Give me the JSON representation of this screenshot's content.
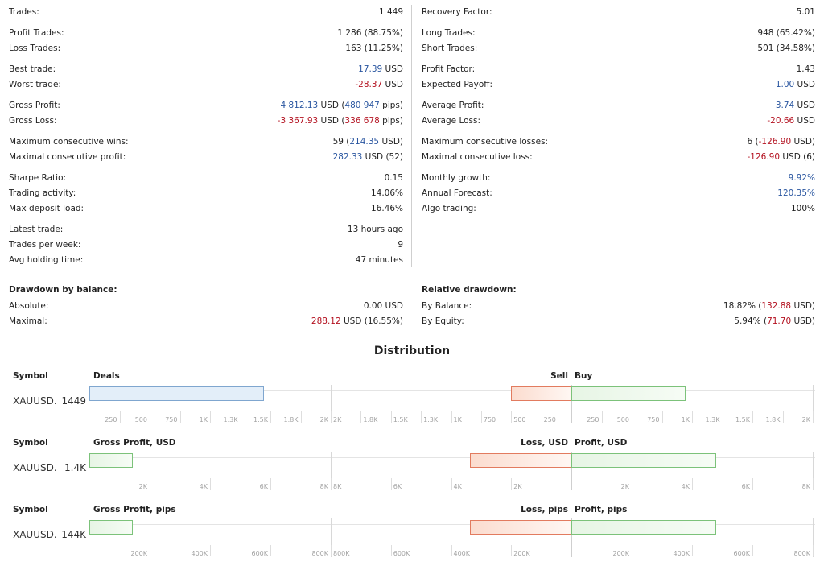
{
  "stats_left": [
    {
      "label": "Trades:",
      "value": "1 449"
    },
    {
      "label": "Profit Trades:",
      "value": "1 286 (88.75%)"
    },
    {
      "label": "Loss Trades:",
      "value": "163 (11.25%)"
    },
    {
      "label": "Best trade:",
      "value_prefix": "",
      "value_colored": "17.39",
      "value_suffix": " USD",
      "color": "blue"
    },
    {
      "label": "Worst trade:",
      "value_prefix": "",
      "value_colored": "-28.37",
      "value_suffix": " USD",
      "color": "red"
    },
    {
      "label": "Gross Profit:",
      "value_prefix": "",
      "value_colored": "4 812.13",
      "value_mid": " USD (",
      "value_colored2": "480 947",
      "value_suffix": " pips)",
      "color": "blue"
    },
    {
      "label": "Gross Loss:",
      "value_prefix": "",
      "value_colored": "-3 367.93",
      "value_mid": " USD (",
      "value_colored2": "336 678",
      "value_suffix": " pips)",
      "color": "red"
    },
    {
      "label": "Maximum consecutive wins:",
      "value_prefix": "59 (",
      "value_colored": "214.35",
      "value_suffix": " USD)",
      "color": "blue"
    },
    {
      "label": "Maximal consecutive profit:",
      "value_prefix": "",
      "value_colored": "282.33",
      "value_suffix": " USD (52)",
      "color": "blue"
    },
    {
      "label": "Sharpe Ratio:",
      "value": "0.15"
    },
    {
      "label": "Trading activity:",
      "value": "14.06%"
    },
    {
      "label": "Max deposit load:",
      "value": "16.46%"
    },
    {
      "label": "Latest trade:",
      "value": "13 hours ago"
    },
    {
      "label": "Trades per week:",
      "value": "9"
    },
    {
      "label": "Avg holding time:",
      "value": "47 minutes"
    }
  ],
  "stats_right": [
    {
      "label": "Recovery Factor:",
      "value": "5.01"
    },
    {
      "label": "Long Trades:",
      "value": "948 (65.42%)"
    },
    {
      "label": "Short Trades:",
      "value": "501 (34.58%)"
    },
    {
      "label": "Profit Factor:",
      "value": "1.43"
    },
    {
      "label": "Expected Payoff:",
      "value_prefix": "",
      "value_colored": "1.00",
      "value_suffix": " USD",
      "color": "blue"
    },
    {
      "label": "Average Profit:",
      "value_prefix": "",
      "value_colored": "3.74",
      "value_suffix": " USD",
      "color": "blue"
    },
    {
      "label": "Average Loss:",
      "value_prefix": "",
      "value_colored": "-20.66",
      "value_suffix": " USD",
      "color": "red"
    },
    {
      "label": "Maximum consecutive losses:",
      "value_prefix": "6 (",
      "value_colored": "-126.90",
      "value_suffix": " USD)",
      "color": "red"
    },
    {
      "label": "Maximal consecutive loss:",
      "value_prefix": "",
      "value_colored": "-126.90",
      "value_suffix": " USD (6)",
      "color": "red"
    },
    {
      "label": "Monthly growth:",
      "value_prefix": "",
      "value_colored": "9.92%",
      "value_suffix": "",
      "color": "blue"
    },
    {
      "label": "Annual Forecast:",
      "value_prefix": "",
      "value_colored": "120.35%",
      "value_suffix": "",
      "color": "blue"
    },
    {
      "label": "Algo trading:",
      "value": "100%"
    }
  ],
  "drawdown_balance": {
    "title": "Drawdown by balance:",
    "absolute_label": "Absolute:",
    "absolute_value": "0.00 USD",
    "maximal_label": "Maximal:",
    "maximal_value_colored": "288.12",
    "maximal_value_suffix": " USD (16.55%)"
  },
  "relative_drawdown": {
    "title": "Relative drawdown:",
    "balance_label": "By Balance:",
    "balance_prefix": "18.82% (",
    "balance_colored": "132.88",
    "balance_suffix": " USD)",
    "equity_label": "By Equity:",
    "equity_prefix": "5.94% (",
    "equity_colored": "71.70",
    "equity_suffix": " USD)"
  },
  "distribution": {
    "title": "Distribution",
    "sections": [
      {
        "symbol_header": "Symbol",
        "left_header": "Deals",
        "right_header_left": "Sell",
        "right_header_right": "Buy",
        "symbol": "XAUUSD.",
        "count": "1449",
        "left_value": 1449,
        "left_max": 2000,
        "left_style": "blue",
        "left_ticks": [
          "250",
          "500",
          "750",
          "1K",
          "1.3K",
          "1.5K",
          "1.8K",
          "2K"
        ],
        "right_left_value": 501,
        "right_left_max": 2000,
        "right_right_value": 948,
        "right_right_max": 2000,
        "right_left_ticks": [
          "2K",
          "1.8K",
          "1.5K",
          "1.3K",
          "1K",
          "750",
          "500",
          "250"
        ],
        "right_right_ticks": [
          "250",
          "500",
          "750",
          "1K",
          "1.3K",
          "1.5K",
          "1.8K",
          "2K"
        ]
      },
      {
        "symbol_header": "Symbol",
        "left_header": "Gross Profit, USD",
        "right_header_left": "Loss, USD",
        "right_header_right": "Profit, USD",
        "symbol": "XAUUSD.",
        "count": "1.4K",
        "left_value": 1444.2,
        "left_max": 8000,
        "left_style": "green",
        "left_ticks": [
          "2K",
          "4K",
          "6K",
          "8K"
        ],
        "right_left_value": 3367.93,
        "right_left_max": 8000,
        "right_right_value": 4812.13,
        "right_right_max": 8000,
        "right_left_ticks": [
          "8K",
          "6K",
          "4K",
          "2K"
        ],
        "right_right_ticks": [
          "2K",
          "4K",
          "6K",
          "8K"
        ]
      },
      {
        "symbol_header": "Symbol",
        "left_header": "Gross Profit, pips",
        "right_header_left": "Loss, pips",
        "right_header_right": "Profit, pips",
        "symbol": "XAUUSD.",
        "count": "144K",
        "left_value": 144269,
        "left_max": 800000,
        "left_style": "green",
        "left_ticks": [
          "200K",
          "400K",
          "600K",
          "800K"
        ],
        "right_left_value": 336678,
        "right_left_max": 800000,
        "right_right_value": 480947,
        "right_right_max": 800000,
        "right_left_ticks": [
          "800K",
          "600K",
          "400K",
          "200K"
        ],
        "right_right_ticks": [
          "200K",
          "400K",
          "600K",
          "800K"
        ]
      }
    ]
  }
}
